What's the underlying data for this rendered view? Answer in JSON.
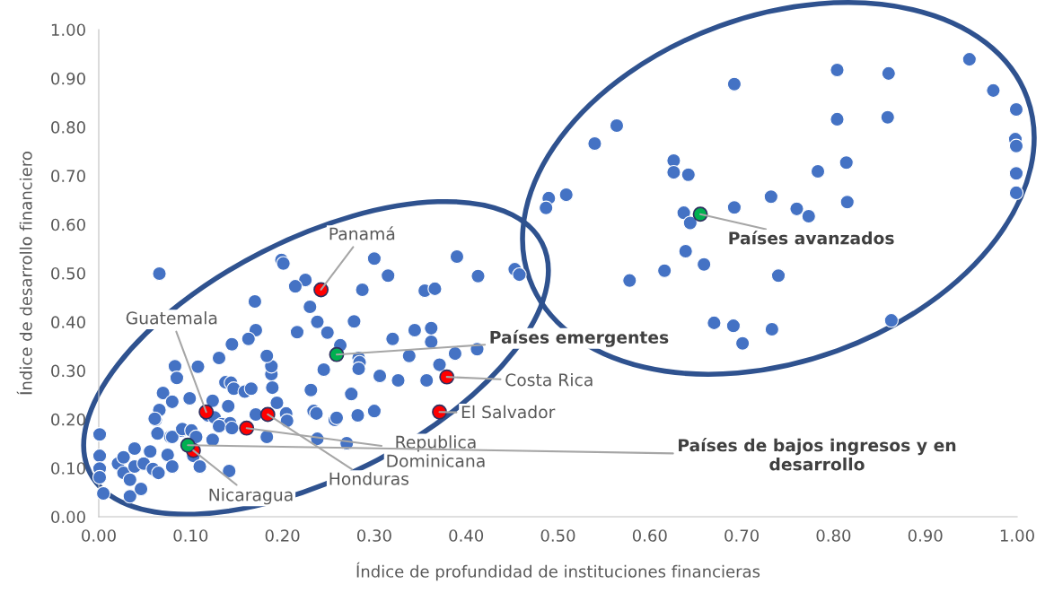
{
  "chart_data": {
    "type": "scatter",
    "xlabel": "Índice de profundidad de instituciones financieras",
    "ylabel": "Índice de desarrollo financiero",
    "xlim": [
      0,
      1
    ],
    "ylim": [
      0,
      1
    ],
    "xticks": [
      {
        "value": 0,
        "label": "0.00"
      },
      {
        "value": 0.1,
        "label": "0.10"
      },
      {
        "value": 0.2,
        "label": "0.20"
      },
      {
        "value": 0.3,
        "label": "0.30"
      },
      {
        "value": 0.4,
        "label": "0.40"
      },
      {
        "value": 0.5,
        "label": "0.50"
      },
      {
        "value": 0.6,
        "label": "0.60"
      },
      {
        "value": 0.7,
        "label": "0.70"
      },
      {
        "value": 0.8,
        "label": "0.80"
      },
      {
        "value": 0.9,
        "label": "0.90"
      },
      {
        "value": 1,
        "label": "1.00"
      }
    ],
    "yticks": [
      {
        "value": 0,
        "label": "0.00"
      },
      {
        "value": 0.1,
        "label": "0.10"
      },
      {
        "value": 0.2,
        "label": "0.20"
      },
      {
        "value": 0.3,
        "label": "0.30"
      },
      {
        "value": 0.4,
        "label": "0.40"
      },
      {
        "value": 0.5,
        "label": "0.50"
      },
      {
        "value": 0.6,
        "label": "0.60"
      },
      {
        "value": 0.7,
        "label": "0.70"
      },
      {
        "value": 0.8,
        "label": "0.80"
      },
      {
        "value": 0.9,
        "label": "0.90"
      },
      {
        "value": 1,
        "label": "1.00"
      }
    ],
    "grid": false,
    "legend": false,
    "marker": "circle",
    "series": [
      {
        "color": "#4472c4",
        "x": [
          0.948,
          0.974,
          0.999,
          0.998,
          0.999,
          0.999,
          0.999,
          0.804,
          0.86,
          0.804,
          0.859,
          0.814,
          0.783,
          0.815,
          0.76,
          0.773,
          0.74,
          0.863,
          0.733,
          0.692,
          0.564,
          0.54,
          0.626,
          0.626,
          0.642,
          0.732,
          0.49,
          0.509,
          0.487,
          0.692,
          0.637,
          0.644,
          0.639,
          0.659,
          0.616,
          0.578,
          0.67,
          0.691,
          0.701,
          0.199,
          0.201,
          0.3,
          0.39,
          0.413,
          0.453,
          0.458,
          0.225,
          0.214,
          0.315,
          0.287,
          0.355,
          0.366,
          0.23,
          0.238,
          0.278,
          0.216,
          0.249,
          0.263,
          0.32,
          0.344,
          0.362,
          0.362,
          0.338,
          0.388,
          0.412,
          0.283,
          0.284,
          0.283,
          0.245,
          0.371,
          0.306,
          0.326,
          0.357,
          0.231,
          0.275,
          0.234,
          0.237,
          0.257,
          0.259,
          0.282,
          0.3,
          0.204,
          0.205,
          0.194,
          0.238,
          0.27,
          0.183,
          0.188,
          0.188,
          0.189,
          0.183,
          0.066,
          0.17,
          0.171,
          0.163,
          0.145,
          0.131,
          0.083,
          0.108,
          0.085,
          0.138,
          0.144,
          0.147,
          0.159,
          0.166,
          0.07,
          0.08,
          0.066,
          0.062,
          0.099,
          0.124,
          0.141,
          0.119,
          0.126,
          0.134,
          0.143,
          0.171,
          0.124,
          0.078,
          0.064,
          0.09,
          0.001,
          0.001,
          0.001,
          0.001,
          0.005,
          0.021,
          0.027,
          0.027,
          0.039,
          0.039,
          0.034,
          0.034,
          0.046,
          0.049,
          0.056,
          0.059,
          0.065,
          0.061,
          0.08,
          0.075,
          0.08,
          0.091,
          0.101,
          0.106,
          0.103,
          0.11,
          0.142,
          0.131,
          0.145
        ],
        "values": [
          0.939,
          0.875,
          0.836,
          0.775,
          0.761,
          0.705,
          0.665,
          0.917,
          0.91,
          0.816,
          0.82,
          0.727,
          0.709,
          0.646,
          0.632,
          0.617,
          0.495,
          0.403,
          0.385,
          0.888,
          0.803,
          0.766,
          0.731,
          0.707,
          0.702,
          0.657,
          0.654,
          0.661,
          0.634,
          0.635,
          0.624,
          0.603,
          0.545,
          0.518,
          0.505,
          0.485,
          0.398,
          0.392,
          0.356,
          0.527,
          0.52,
          0.53,
          0.534,
          0.494,
          0.508,
          0.497,
          0.486,
          0.473,
          0.495,
          0.466,
          0.464,
          0.468,
          0.431,
          0.4,
          0.401,
          0.379,
          0.378,
          0.352,
          0.365,
          0.383,
          0.387,
          0.359,
          0.33,
          0.335,
          0.344,
          0.326,
          0.317,
          0.304,
          0.302,
          0.312,
          0.289,
          0.28,
          0.28,
          0.26,
          0.252,
          0.217,
          0.212,
          0.199,
          0.203,
          0.208,
          0.217,
          0.212,
          0.197,
          0.234,
          0.16,
          0.151,
          0.164,
          0.293,
          0.309,
          0.265,
          0.33,
          0.499,
          0.442,
          0.383,
          0.365,
          0.354,
          0.326,
          0.309,
          0.308,
          0.285,
          0.276,
          0.275,
          0.263,
          0.257,
          0.263,
          0.254,
          0.236,
          0.219,
          0.199,
          0.243,
          0.238,
          0.227,
          0.208,
          0.204,
          0.19,
          0.192,
          0.21,
          0.158,
          0.164,
          0.171,
          0.177,
          0.169,
          0.125,
          0.099,
          0.081,
          0.048,
          0.109,
          0.09,
          0.122,
          0.14,
          0.103,
          0.076,
          0.042,
          0.057,
          0.109,
          0.134,
          0.098,
          0.09,
          0.201,
          0.164,
          0.127,
          0.103,
          0.18,
          0.177,
          0.164,
          0.125,
          0.103,
          0.094,
          0.186,
          0.182
        ]
      },
      {
        "color": "#ff0000",
        "x": [
          0.242,
          0.117,
          0.184,
          0.161,
          0.103,
          0.379,
          0.371
        ],
        "values": [
          0.466,
          0.215,
          0.21,
          0.182,
          0.136,
          0.287,
          0.215
        ]
      },
      {
        "color": "#00b050",
        "x": [
          0.259,
          0.655,
          0.097
        ],
        "values": [
          0.333,
          0.621,
          0.147
        ]
      }
    ],
    "annotations": [
      {
        "text": "Panamá",
        "x": 0.242,
        "y": 0.466
      },
      {
        "text": "Guatemala",
        "x": 0.117,
        "y": 0.215
      },
      {
        "text": "Costa Rica",
        "x": 0.379,
        "y": 0.287
      },
      {
        "text": "El Salvador",
        "x": 0.371,
        "y": 0.215
      },
      {
        "text": "Republica\nDominicana",
        "x": 0.161,
        "y": 0.182
      },
      {
        "text": "Honduras",
        "x": 0.184,
        "y": 0.21
      },
      {
        "text": "Nicaragua",
        "x": 0.103,
        "y": 0.136
      },
      {
        "text": "Países emergentes",
        "x": 0.259,
        "y": 0.333
      },
      {
        "text": "Países avanzados",
        "x": 0.655,
        "y": 0.621
      },
      {
        "text": "Países de bajos ingresos y en\ndesarrollo",
        "x": 0.097,
        "y": 0.147
      }
    ]
  }
}
